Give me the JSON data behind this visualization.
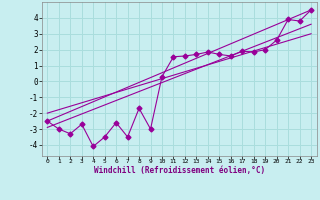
{
  "title": "",
  "xlabel": "Windchill (Refroidissement éolien,°C)",
  "ylabel": "",
  "background_color": "#c8eef0",
  "line_color": "#990099",
  "grid_color": "#aadddd",
  "xlim": [
    -0.5,
    23.5
  ],
  "ylim": [
    -4.7,
    5.0
  ],
  "xticks": [
    0,
    1,
    2,
    3,
    4,
    5,
    6,
    7,
    8,
    9,
    10,
    11,
    12,
    13,
    14,
    15,
    16,
    17,
    18,
    19,
    20,
    21,
    22,
    23
  ],
  "yticks": [
    -4,
    -3,
    -2,
    -1,
    0,
    1,
    2,
    3,
    4
  ],
  "series": {
    "scatter_x": [
      0,
      1,
      2,
      3,
      4,
      5,
      6,
      7,
      8,
      9,
      10,
      11,
      12,
      13,
      14,
      15,
      16,
      17,
      18,
      19,
      20,
      21,
      22,
      23
    ],
    "scatter_y": [
      -2.5,
      -3.0,
      -3.3,
      -2.7,
      -4.1,
      -3.5,
      -2.6,
      -3.5,
      -1.7,
      -3.0,
      0.3,
      1.55,
      1.6,
      1.7,
      1.85,
      1.7,
      1.6,
      1.9,
      1.85,
      2.0,
      2.6,
      3.9,
      3.8,
      4.5
    ],
    "line1_x": [
      0,
      23
    ],
    "line1_y": [
      -2.5,
      4.5
    ],
    "line2_x": [
      0,
      23
    ],
    "line2_y": [
      -2.9,
      3.6
    ],
    "line3_x": [
      0,
      23
    ],
    "line3_y": [
      -2.0,
      3.0
    ]
  },
  "marker": "D",
  "markersize": 2.5,
  "linewidth": 0.8
}
